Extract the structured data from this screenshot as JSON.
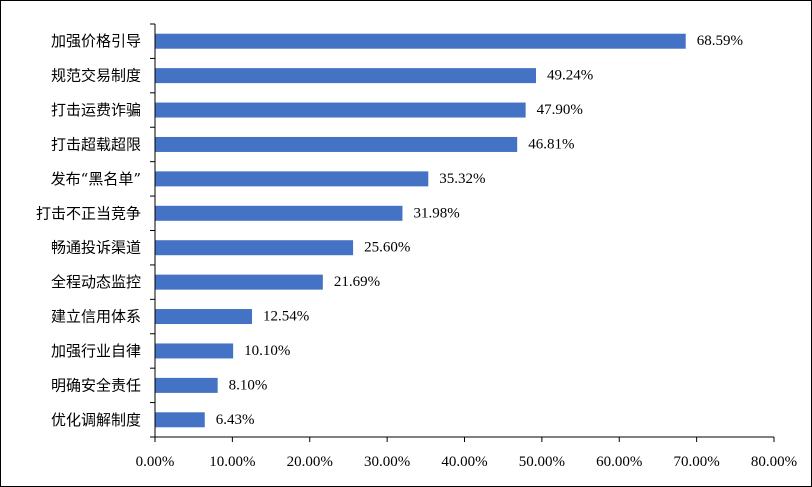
{
  "chart_data": {
    "type": "bar",
    "orientation": "horizontal",
    "categories": [
      "加强价格引导",
      "规范交易制度",
      "打击运费诈骗",
      "打击超载超限",
      "发布“黑名单”",
      "打击不正当竞争",
      "畅通投诉渠道",
      "全程动态监控",
      "建立信用体系",
      "加强行业自律",
      "明确安全责任",
      "优化调解制度"
    ],
    "values": [
      68.59,
      49.24,
      47.9,
      46.81,
      35.32,
      31.98,
      25.6,
      21.69,
      12.54,
      10.1,
      8.1,
      6.43
    ],
    "value_labels": [
      "68.59%",
      "49.24%",
      "47.90%",
      "46.81%",
      "35.32%",
      "31.98%",
      "25.60%",
      "21.69%",
      "12.54%",
      "10.10%",
      "8.10%",
      "6.43%"
    ],
    "x_ticks": [
      "0.00%",
      "10.00%",
      "20.00%",
      "30.00%",
      "40.00%",
      "50.00%",
      "60.00%",
      "70.00%",
      "80.00%"
    ],
    "xlim": [
      0,
      80
    ],
    "bar_color": "#4472c4",
    "grid": false,
    "legend": "none",
    "title": "",
    "xlabel": "",
    "ylabel": ""
  }
}
